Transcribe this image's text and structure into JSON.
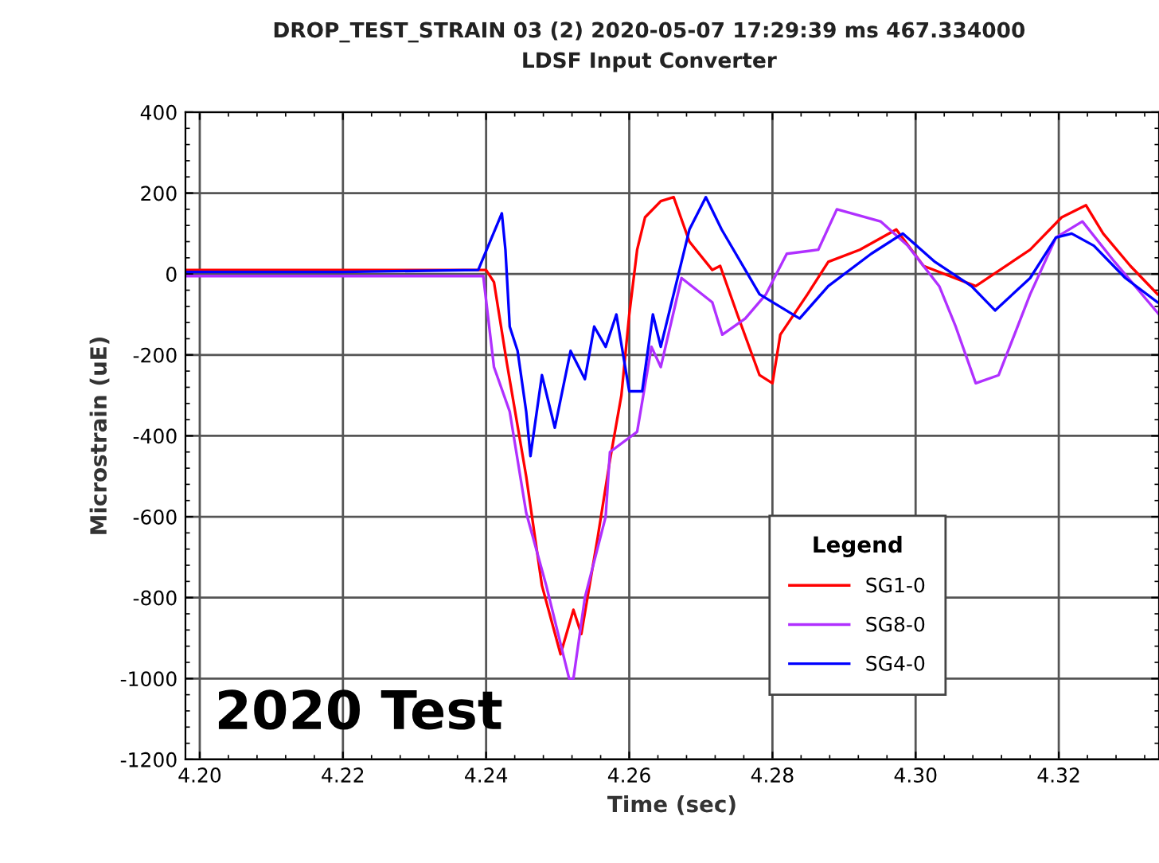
{
  "chart_data": {
    "type": "line",
    "title": "DROP_TEST_STRAIN 03 (2) 2020-05-07 17:29:39 ms 467.334000",
    "subtitle": "LDSF Input Converter",
    "xlabel": "Time (sec)",
    "ylabel": "Microstrain (uE)",
    "legend_title": "Legend",
    "annotations": [
      "2020 Test"
    ],
    "xlim": [
      4.198,
      4.334
    ],
    "ylim": [
      -1200,
      400
    ],
    "xticks": [
      {
        "value": 4.2,
        "label": "4.20"
      },
      {
        "value": 4.22,
        "label": "4.22"
      },
      {
        "value": 4.24,
        "label": "4.24"
      },
      {
        "value": 4.26,
        "label": "4.26"
      },
      {
        "value": 4.28,
        "label": "4.28"
      },
      {
        "value": 4.3,
        "label": "4.30"
      },
      {
        "value": 4.32,
        "label": "4.32"
      }
    ],
    "yticks": [
      -1200,
      -1000,
      -800,
      -600,
      -400,
      -200,
      0,
      200,
      400
    ],
    "grid": true,
    "legend": "bottom right",
    "marker": "none",
    "line_style": "solid",
    "series": [
      {
        "name": "SG1-0",
        "color": "#ff0000",
        "x": [
          4.198,
          4.22,
          4.24,
          4.2411,
          4.2429,
          4.2456,
          4.2478,
          4.2504,
          4.2522,
          4.2533,
          4.2556,
          4.2573,
          4.2589,
          4.26,
          4.2611,
          4.2622,
          4.2644,
          4.2662,
          4.2684,
          4.2716,
          4.2727,
          4.2751,
          4.2782,
          4.28,
          4.2811,
          4.2849,
          4.2878,
          4.2922,
          4.2973,
          4.3011,
          4.3084,
          4.316,
          4.3204,
          4.3238,
          4.3262,
          4.33,
          4.3338
        ],
        "values": [
          10,
          10,
          10,
          -20,
          -220,
          -500,
          -770,
          -940,
          -830,
          -890,
          -650,
          -460,
          -300,
          -100,
          60,
          140,
          180,
          190,
          80,
          10,
          20,
          -100,
          -250,
          -270,
          -150,
          -50,
          30,
          60,
          110,
          20,
          -30,
          60,
          140,
          170,
          100,
          20,
          -50
        ]
      },
      {
        "name": "SG8-0",
        "color": "#b030ff",
        "x": [
          4.198,
          4.22,
          4.2396,
          4.2411,
          4.2433,
          4.2456,
          4.2484,
          4.2516,
          4.2522,
          4.2538,
          4.2567,
          4.2573,
          4.2611,
          4.2631,
          4.2644,
          4.2673,
          4.2716,
          4.273,
          4.2762,
          4.2791,
          4.282,
          4.2864,
          4.289,
          4.2951,
          4.2989,
          4.3033,
          4.3056,
          4.3084,
          4.3116,
          4.316,
          4.3196,
          4.3233,
          4.3278,
          4.334
        ],
        "values": [
          -5,
          -5,
          -5,
          -230,
          -340,
          -590,
          -770,
          -1000,
          -1000,
          -800,
          -600,
          -440,
          -390,
          -180,
          -230,
          -10,
          -70,
          -150,
          -110,
          -50,
          50,
          60,
          160,
          130,
          70,
          -30,
          -130,
          -270,
          -250,
          -50,
          90,
          130,
          30,
          -100
        ]
      },
      {
        "name": "SG4-0",
        "color": "#0000ff",
        "x": [
          4.198,
          4.22,
          4.2389,
          4.2422,
          4.2427,
          4.2433,
          4.2444,
          4.2456,
          4.2462,
          4.2478,
          4.2496,
          4.2518,
          4.2538,
          4.2551,
          4.2567,
          4.2582,
          4.26,
          4.2618,
          4.2633,
          4.2644,
          4.2684,
          4.2707,
          4.2729,
          4.2782,
          4.2838,
          4.2878,
          4.2938,
          4.2982,
          4.3027,
          4.3078,
          4.3111,
          4.316,
          4.3196,
          4.3218,
          4.3249,
          4.3293,
          4.3338
        ],
        "values": [
          5,
          5,
          10,
          150,
          60,
          -130,
          -190,
          -340,
          -450,
          -250,
          -380,
          -190,
          -260,
          -130,
          -180,
          -100,
          -290,
          -290,
          -100,
          -180,
          110,
          190,
          110,
          -50,
          -110,
          -30,
          50,
          100,
          30,
          -30,
          -90,
          -10,
          90,
          100,
          70,
          -10,
          -70
        ]
      }
    ]
  }
}
